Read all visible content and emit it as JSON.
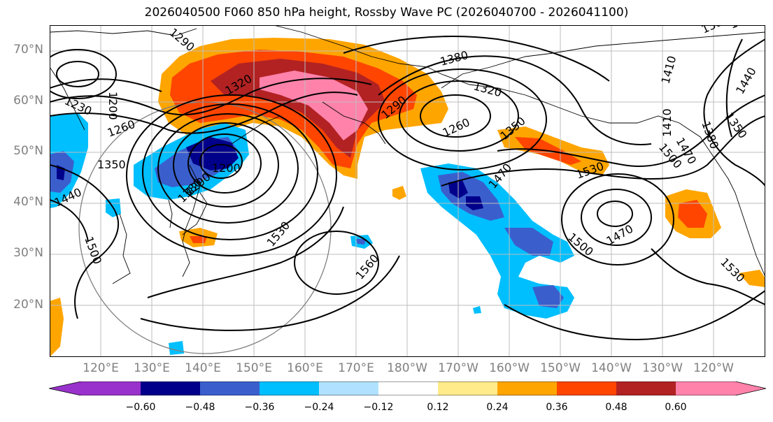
{
  "title": "2026040500 F060 850 hPa height, Rossby Wave PC (2026040700 - 2026041100)",
  "lat_labels": [
    "70°N",
    "60°N",
    "50°N",
    "40°N",
    "30°N",
    "20°N"
  ],
  "lon_labels": [
    "120°E",
    "130°E",
    "140°E",
    "150°E",
    "160°E",
    "170°E",
    "180°W",
    "170°W",
    "160°W",
    "150°W",
    "140°W",
    "130°W",
    "120°W"
  ],
  "contour_labels": [
    "1200",
    "1230",
    "1260",
    "1290",
    "1320",
    "1350",
    "1380",
    "1410",
    "1440",
    "1470",
    "1500",
    "1530",
    "1560",
    "1200",
    "1290",
    "1320",
    "1380",
    "1350",
    "1260",
    "1470",
    "1530",
    "1500",
    "1470",
    "1530",
    "1500",
    "1410",
    "1440",
    "1380",
    "1350",
    "1380",
    "1350",
    "1290"
  ],
  "colorbar": {
    "ticks": [
      "−0.60",
      "−0.48",
      "−0.36",
      "−0.24",
      "−0.12",
      "0.12",
      "0.24",
      "0.36",
      "0.48",
      "0.60"
    ],
    "colors": [
      "#9932cc",
      "#00008b",
      "#3a5fcd",
      "#00bfff",
      "#b0e2ff",
      "#ffffff",
      "#ffeb8a",
      "#ffa500",
      "#ff4500",
      "#b22222",
      "#ff82ab"
    ]
  },
  "shading_colors": {
    "pos1": "#ffeb8a",
    "pos2": "#ffa500",
    "pos3": "#ff4500",
    "pos4": "#b22222",
    "pos5": "#ff82ab",
    "neg1": "#b0e2ff",
    "neg2": "#00bfff",
    "neg3": "#3a5fcd",
    "neg4": "#00008b"
  }
}
